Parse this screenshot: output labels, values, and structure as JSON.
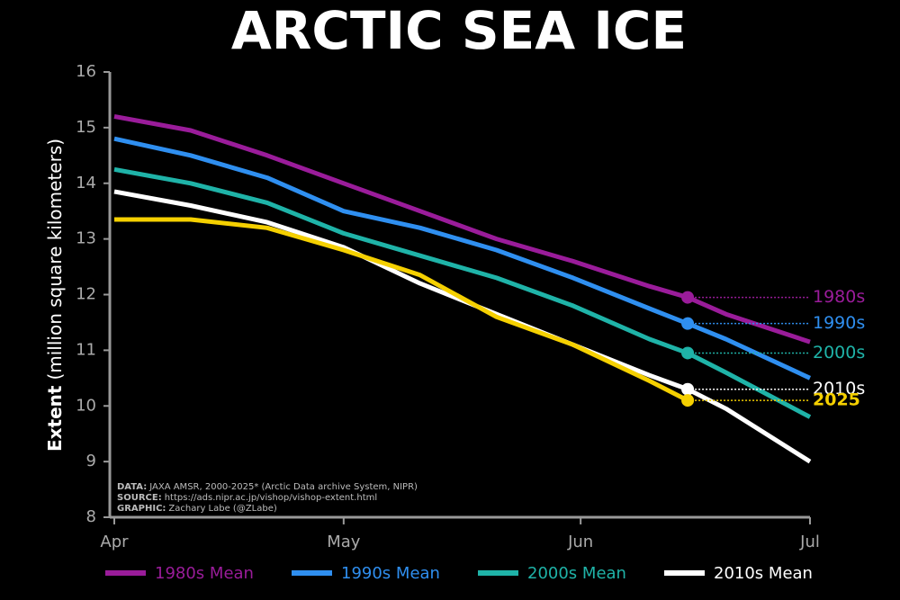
{
  "chart_data": {
    "type": "line",
    "title": "ARCTIC SEA ICE",
    "y_label": {
      "bold": "Extent",
      "rest": "(million square kilometers)"
    },
    "x": [
      0,
      10,
      20,
      30,
      40,
      50,
      60,
      70,
      75,
      80,
      91
    ],
    "xlim": [
      0,
      91
    ],
    "xticks": [
      {
        "value": 0,
        "label": "Apr"
      },
      {
        "value": 30,
        "label": "May"
      },
      {
        "value": 61,
        "label": "Jun"
      },
      {
        "value": 91,
        "label": "Jul"
      }
    ],
    "ylim": [
      8,
      16
    ],
    "yticks": [
      8,
      9,
      10,
      11,
      12,
      13,
      14,
      15,
      16
    ],
    "marker_index": 8,
    "series": [
      {
        "name": "1980s Mean",
        "end_label": "1980s",
        "color": "#9a1c9a",
        "values": [
          15.2,
          14.95,
          14.5,
          14.0,
          13.5,
          13.0,
          12.6,
          12.15,
          11.95,
          11.65,
          11.15
        ]
      },
      {
        "name": "1990s Mean",
        "end_label": "1990s",
        "color": "#2f8ff0",
        "values": [
          14.8,
          14.5,
          14.1,
          13.5,
          13.2,
          12.8,
          12.3,
          11.75,
          11.48,
          11.2,
          10.5
        ]
      },
      {
        "name": "2000s Mean",
        "end_label": "2000s",
        "color": "#1fb3a8",
        "values": [
          14.25,
          14.0,
          13.65,
          13.1,
          12.7,
          12.3,
          11.8,
          11.2,
          10.95,
          10.6,
          9.8
        ]
      },
      {
        "name": "2010s Mean",
        "end_label": "2010s",
        "color": "#ffffff",
        "values": [
          13.85,
          13.6,
          13.3,
          12.85,
          12.2,
          11.65,
          11.1,
          10.55,
          10.3,
          9.95,
          9.0
        ]
      },
      {
        "end_label": "2025",
        "color": "#f5d000",
        "values": [
          13.35,
          13.35,
          13.2,
          12.8,
          12.35,
          11.6,
          11.1,
          10.45,
          10.1,
          null,
          null
        ]
      }
    ],
    "notes": [
      {
        "label": "DATA:",
        "text": "JAXA AMSR, 2000-2025* (Arctic Data archive System, NIPR)"
      },
      {
        "label": "SOURCE:",
        "text": "https://ads.nipr.ac.jp/vishop/vishop-extent.html"
      },
      {
        "label": "GRAPHIC:",
        "text": "Zachary Labe (@ZLabe)"
      }
    ]
  }
}
